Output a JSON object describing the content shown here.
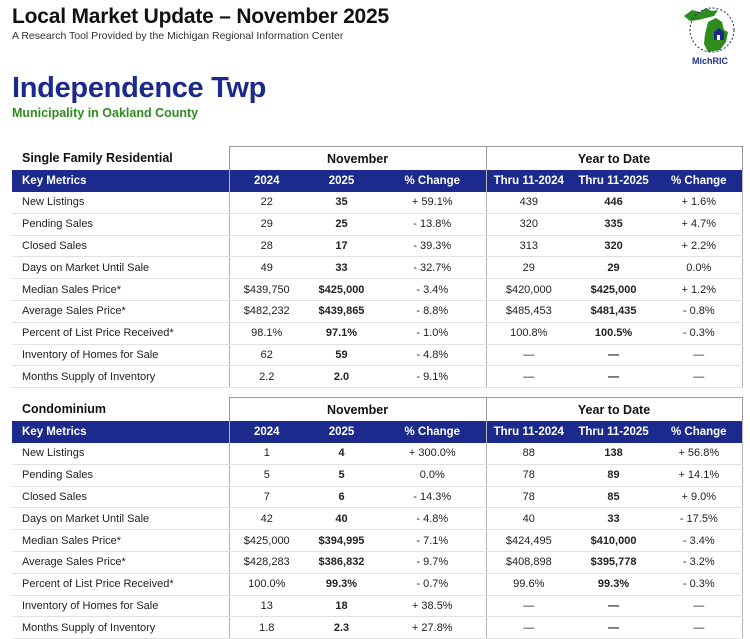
{
  "header": {
    "title": "Local Market Update – November 2025",
    "subtitle": "A Research Tool Provided by the Michigan Regional Information Center"
  },
  "logo": {
    "text": "MichRIC",
    "ring_text": "Michigan Regional Information Center",
    "colors": {
      "green": "#2e8b1e",
      "blue": "#1b2a8c"
    }
  },
  "municipality": {
    "name": "Independence Twp",
    "subtitle": "Municipality in Oakland County"
  },
  "colors": {
    "header_blue": "#1b2a8c",
    "accent_green": "#2e8b1e"
  },
  "columns": {
    "key_metrics": "Key Metrics",
    "month_group": "November",
    "ytd_group": "Year to Date",
    "month_prev": "2024",
    "month_curr": "2025",
    "pct_change": "% Change",
    "ytd_prev": "Thru 11-2024",
    "ytd_curr": "Thru 11-2025"
  },
  "sections": [
    {
      "name": "Single Family Residential",
      "rows": [
        {
          "label": "New Listings",
          "m24": "22",
          "m25": "35",
          "mchg": "+ 59.1%",
          "y24": "439",
          "y25": "446",
          "ychg": "+ 1.6%"
        },
        {
          "label": "Pending Sales",
          "m24": "29",
          "m25": "25",
          "mchg": "- 13.8%",
          "y24": "320",
          "y25": "335",
          "ychg": "+ 4.7%"
        },
        {
          "label": "Closed Sales",
          "m24": "28",
          "m25": "17",
          "mchg": "- 39.3%",
          "y24": "313",
          "y25": "320",
          "ychg": "+ 2.2%"
        },
        {
          "label": "Days on Market Until Sale",
          "m24": "49",
          "m25": "33",
          "mchg": "- 32.7%",
          "y24": "29",
          "y25": "29",
          "ychg": "0.0%"
        },
        {
          "label": "Median Sales Price*",
          "m24": "$439,750",
          "m25": "$425,000",
          "mchg": "- 3.4%",
          "y24": "$420,000",
          "y25": "$425,000",
          "ychg": "+ 1.2%"
        },
        {
          "label": "Average Sales Price*",
          "m24": "$482,232",
          "m25": "$439,865",
          "mchg": "- 8.8%",
          "y24": "$485,453",
          "y25": "$481,435",
          "ychg": "- 0.8%"
        },
        {
          "label": "Percent of List Price Received*",
          "m24": "98.1%",
          "m25": "97.1%",
          "mchg": "- 1.0%",
          "y24": "100.8%",
          "y25": "100.5%",
          "ychg": "- 0.3%"
        },
        {
          "label": "Inventory of Homes for Sale",
          "m24": "62",
          "m25": "59",
          "mchg": "- 4.8%",
          "y24": "—",
          "y25": "—",
          "ychg": "—"
        },
        {
          "label": "Months Supply of Inventory",
          "m24": "2.2",
          "m25": "2.0",
          "mchg": "- 9.1%",
          "y24": "—",
          "y25": "—",
          "ychg": "—"
        }
      ]
    },
    {
      "name": "Condominium",
      "rows": [
        {
          "label": "New Listings",
          "m24": "1",
          "m25": "4",
          "mchg": "+ 300.0%",
          "y24": "88",
          "y25": "138",
          "ychg": "+ 56.8%"
        },
        {
          "label": "Pending Sales",
          "m24": "5",
          "m25": "5",
          "mchg": "0.0%",
          "y24": "78",
          "y25": "89",
          "ychg": "+ 14.1%"
        },
        {
          "label": "Closed Sales",
          "m24": "7",
          "m25": "6",
          "mchg": "- 14.3%",
          "y24": "78",
          "y25": "85",
          "ychg": "+ 9.0%"
        },
        {
          "label": "Days on Market Until Sale",
          "m24": "42",
          "m25": "40",
          "mchg": "- 4.8%",
          "y24": "40",
          "y25": "33",
          "ychg": "- 17.5%"
        },
        {
          "label": "Median Sales Price*",
          "m24": "$425,000",
          "m25": "$394,995",
          "mchg": "- 7.1%",
          "y24": "$424,495",
          "y25": "$410,000",
          "ychg": "- 3.4%"
        },
        {
          "label": "Average Sales Price*",
          "m24": "$428,283",
          "m25": "$386,832",
          "mchg": "- 9.7%",
          "y24": "$408,898",
          "y25": "$395,778",
          "ychg": "- 3.2%"
        },
        {
          "label": "Percent of List Price Received*",
          "m24": "100.0%",
          "m25": "99.3%",
          "mchg": "- 0.7%",
          "y24": "99.6%",
          "y25": "99.3%",
          "ychg": "- 0.3%"
        },
        {
          "label": "Inventory of Homes for Sale",
          "m24": "13",
          "m25": "18",
          "mchg": "+ 38.5%",
          "y24": "—",
          "y25": "—",
          "ychg": "—"
        },
        {
          "label": "Months Supply of Inventory",
          "m24": "1.8",
          "m25": "2.3",
          "mchg": "+ 27.8%",
          "y24": "—",
          "y25": "—",
          "ychg": "—"
        }
      ]
    }
  ]
}
